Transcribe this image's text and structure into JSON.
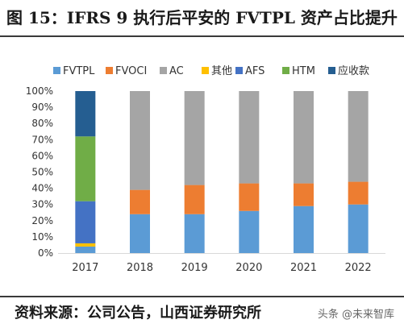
{
  "title": "图 15：IFRS 9 执行后平安的 FVTPL 资产占比提升",
  "source": "资料来源：公司公告，山西证券研究所",
  "watermark": "头条 @未来智库",
  "chart_data": {
    "type": "bar",
    "stacked": true,
    "categories": [
      "2017",
      "2018",
      "2019",
      "2020",
      "2021",
      "2022"
    ],
    "series": [
      {
        "name": "FVTPL",
        "color": "#5b9bd5",
        "values": [
          4,
          24,
          24,
          26,
          29,
          30
        ]
      },
      {
        "name": "FVOCI",
        "color": "#ed7d31",
        "values": [
          0,
          15,
          18,
          17,
          14,
          14
        ]
      },
      {
        "name": "AC",
        "color": "#a5a5a5",
        "values": [
          0,
          61,
          58,
          57,
          57,
          56
        ]
      },
      {
        "name": "其他",
        "color": "#ffc000",
        "values": [
          2,
          0,
          0,
          0,
          0,
          0
        ]
      },
      {
        "name": "AFS",
        "color": "#4472c4",
        "values": [
          26,
          0,
          0,
          0,
          0,
          0
        ]
      },
      {
        "name": "HTM",
        "color": "#70ad47",
        "values": [
          40,
          0,
          0,
          0,
          0,
          0
        ]
      },
      {
        "name": "应收款",
        "color": "#255e91",
        "values": [
          28,
          0,
          0,
          0,
          0,
          0
        ]
      }
    ],
    "ylim": [
      0,
      100
    ],
    "yticks": [
      "0%",
      "10%",
      "20%",
      "30%",
      "40%",
      "50%",
      "60%",
      "70%",
      "80%",
      "90%",
      "100%"
    ],
    "legend_position": "top",
    "grid": false
  }
}
